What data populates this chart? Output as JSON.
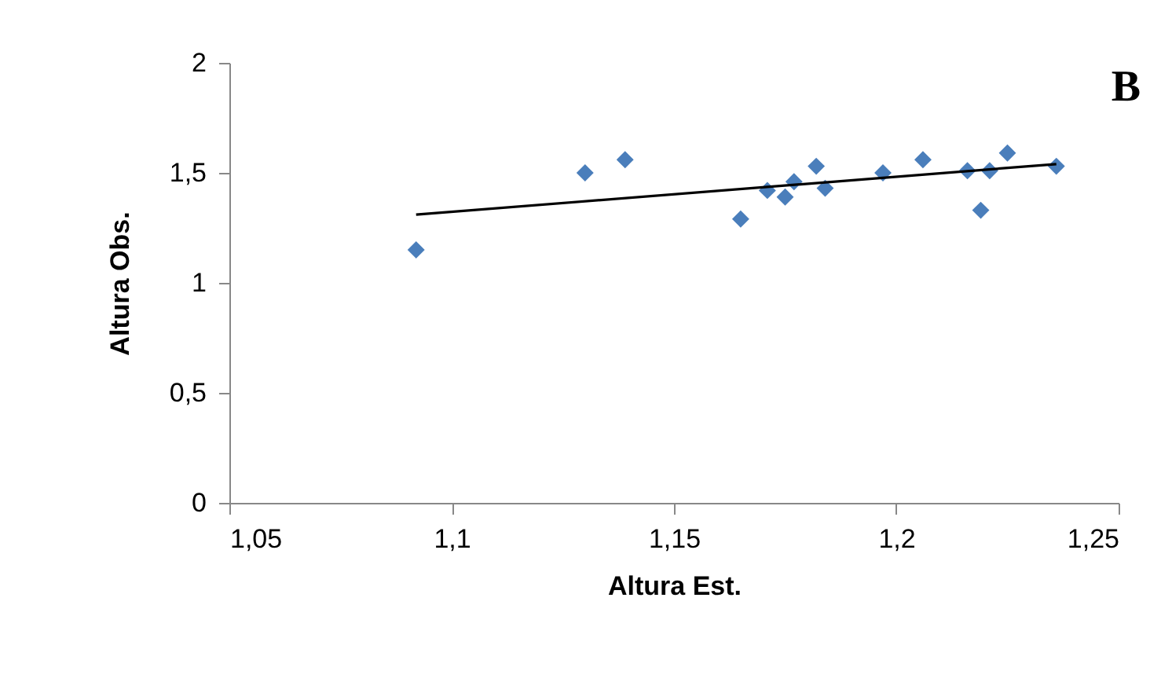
{
  "chart_data": {
    "type": "scatter",
    "xlabel": "Altura Est.",
    "ylabel": "Altura Obs.",
    "annotations": [
      "B"
    ],
    "xlim": [
      1.05,
      1.25
    ],
    "ylim": [
      0,
      2
    ],
    "xticks": [
      {
        "value": 1.05,
        "label": "1,05"
      },
      {
        "value": 1.1,
        "label": "1,1"
      },
      {
        "value": 1.15,
        "label": "1,15"
      },
      {
        "value": 1.2,
        "label": "1,2"
      },
      {
        "value": 1.25,
        "label": "1,25"
      }
    ],
    "yticks": [
      0,
      {
        "value": 0.5,
        "label": "0,5"
      },
      1,
      {
        "value": 1.5,
        "label": "1,5"
      },
      2
    ],
    "grid": false,
    "series": [
      {
        "marker": "diamond",
        "color": "#4a7ebb",
        "x": [
          1.092,
          1.13,
          1.139,
          1.165,
          1.171,
          1.175,
          1.177,
          1.182,
          1.184,
          1.197,
          1.206,
          1.216,
          1.219,
          1.221,
          1.225,
          1.236
        ],
        "values": [
          1.15,
          1.5,
          1.56,
          1.29,
          1.42,
          1.39,
          1.46,
          1.53,
          1.43,
          1.5,
          1.56,
          1.51,
          1.33,
          1.51,
          1.59,
          1.53
        ]
      },
      {
        "type": "line",
        "color": "#000000",
        "x": [
          1.092,
          1.236
        ],
        "values": [
          1.31,
          1.54
        ]
      }
    ]
  }
}
